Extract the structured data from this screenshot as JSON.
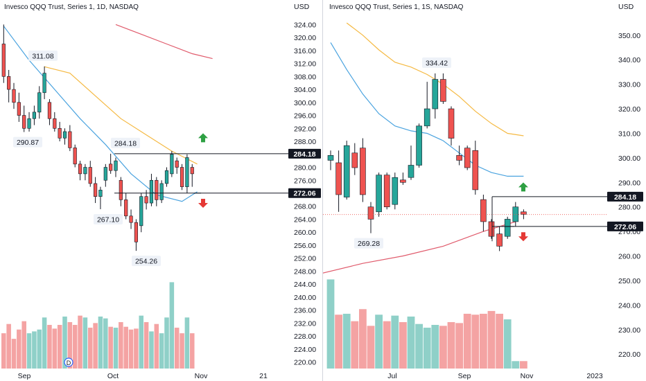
{
  "colors": {
    "up": "#26a69a",
    "down": "#ef5350",
    "up_volume": "#8fd0c8",
    "down_volume": "#f4a3a3",
    "ma_blue": "#4aa3df",
    "ma_orange": "#f5b942",
    "ma_red": "#e05a6b",
    "level_line": "#131722",
    "callout_bg": "#eef2f8",
    "tag_bg": "#131722",
    "arrow_up": "#2ea043",
    "arrow_down": "#e53935"
  },
  "chart_data": [
    {
      "type": "candlestick",
      "title": "Invesco QQQ Trust, Series 1, 1D, NASDAQ",
      "currency": "USD",
      "ylim": [
        218,
        326
      ],
      "y_ticks": [
        220,
        224,
        228,
        232,
        236,
        240,
        244,
        248,
        252,
        256,
        260,
        264,
        268,
        272,
        276,
        280,
        284,
        288,
        292,
        296,
        300,
        304,
        308,
        312,
        316,
        320,
        324
      ],
      "time_labels": [
        "Sep",
        "Oct",
        "Nov",
        "21"
      ],
      "candles": [
        {
          "o": 318,
          "h": 324,
          "l": 306,
          "c": 308
        },
        {
          "o": 308,
          "h": 310,
          "l": 300,
          "c": 304
        },
        {
          "o": 304,
          "h": 306,
          "l": 298,
          "c": 300
        },
        {
          "o": 300,
          "h": 303,
          "l": 294,
          "c": 296
        },
        {
          "o": 296,
          "h": 299,
          "l": 290.87,
          "c": 292
        },
        {
          "o": 292,
          "h": 297,
          "l": 291,
          "c": 295
        },
        {
          "o": 295,
          "h": 299,
          "l": 293,
          "c": 297
        },
        {
          "o": 297,
          "h": 305,
          "l": 295,
          "c": 303
        },
        {
          "o": 303,
          "h": 311.08,
          "l": 301,
          "c": 309
        },
        {
          "o": 300,
          "h": 301,
          "l": 293,
          "c": 295
        },
        {
          "o": 295,
          "h": 297,
          "l": 291,
          "c": 292
        },
        {
          "o": 292,
          "h": 294,
          "l": 288,
          "c": 289
        },
        {
          "o": 289,
          "h": 292,
          "l": 287,
          "c": 291
        },
        {
          "o": 291,
          "h": 293,
          "l": 285,
          "c": 286
        },
        {
          "o": 286,
          "h": 287,
          "l": 280,
          "c": 281
        },
        {
          "o": 281,
          "h": 282,
          "l": 276,
          "c": 278
        },
        {
          "o": 278,
          "h": 281,
          "l": 276,
          "c": 280
        },
        {
          "o": 280,
          "h": 282,
          "l": 274,
          "c": 275
        },
        {
          "o": 275,
          "h": 277,
          "l": 269,
          "c": 271
        },
        {
          "o": 271,
          "h": 274,
          "l": 267.1,
          "c": 273
        },
        {
          "o": 276,
          "h": 281,
          "l": 274,
          "c": 280
        },
        {
          "o": 281,
          "h": 284.18,
          "l": 278,
          "c": 279
        },
        {
          "o": 279,
          "h": 283,
          "l": 277,
          "c": 282
        },
        {
          "o": 276,
          "h": 277,
          "l": 268,
          "c": 270
        },
        {
          "o": 270,
          "h": 272,
          "l": 264,
          "c": 265
        },
        {
          "o": 265,
          "h": 267,
          "l": 261,
          "c": 263
        },
        {
          "o": 263,
          "h": 264,
          "l": 254.26,
          "c": 257
        },
        {
          "o": 262,
          "h": 272,
          "l": 260,
          "c": 271
        },
        {
          "o": 271,
          "h": 273,
          "l": 267,
          "c": 269
        },
        {
          "o": 269,
          "h": 278,
          "l": 268,
          "c": 276
        },
        {
          "o": 276,
          "h": 277,
          "l": 268,
          "c": 270
        },
        {
          "o": 270,
          "h": 276,
          "l": 269,
          "c": 275
        },
        {
          "o": 275,
          "h": 280,
          "l": 274,
          "c": 279
        },
        {
          "o": 278,
          "h": 285,
          "l": 277,
          "c": 284
        },
        {
          "o": 282,
          "h": 283,
          "l": 278,
          "c": 280
        },
        {
          "o": 280,
          "h": 281,
          "l": 273,
          "c": 274
        },
        {
          "o": 274,
          "h": 284,
          "l": 272,
          "c": 283
        },
        {
          "o": 280,
          "h": 281,
          "l": 274,
          "c": 278
        }
      ],
      "volume": [
        0.38,
        0.48,
        0.32,
        0.42,
        0.51,
        0.38,
        0.4,
        0.42,
        0.55,
        0.47,
        0.43,
        0.47,
        0.56,
        0.5,
        0.47,
        0.57,
        0.55,
        0.44,
        0.49,
        0.56,
        0.54,
        0.45,
        0.44,
        0.5,
        0.45,
        0.42,
        0.43,
        0.57,
        0.5,
        0.4,
        0.48,
        0.38,
        0.55,
        0.93,
        0.44,
        0.38,
        0.55,
        0.38
      ],
      "ma_blue": [
        [
          0,
          323.5
        ],
        [
          5,
          313
        ],
        [
          10,
          304
        ],
        [
          15,
          295
        ],
        [
          20,
          287
        ],
        [
          25,
          278
        ],
        [
          30,
          271.5
        ],
        [
          35,
          269.5
        ],
        [
          38,
          272.5
        ]
      ],
      "ma_orange": [
        [
          8,
          311
        ],
        [
          13,
          309
        ],
        [
          18,
          302
        ],
        [
          23,
          295
        ],
        [
          28,
          290
        ],
        [
          33,
          285
        ],
        [
          38,
          281
        ]
      ],
      "ma_red": [
        [
          22,
          324
        ],
        [
          27,
          321
        ],
        [
          32,
          318
        ],
        [
          37,
          315
        ],
        [
          41,
          313.5
        ]
      ],
      "callouts": [
        "311.08",
        "290.87",
        "284.18",
        "267.10",
        "254.26"
      ],
      "levels": [
        284.18,
        272.06
      ],
      "level_labels": [
        "284.18",
        "272.06"
      ],
      "marker_letter": "D"
    },
    {
      "type": "candlestick",
      "title": "Invesco QQQ Trust, Series 1, 1S, NASDAQ",
      "currency": "USD",
      "ylim": [
        213,
        357
      ],
      "y_ticks": [
        220,
        230,
        240,
        250,
        260,
        270,
        280,
        290,
        300,
        310,
        320,
        330,
        340,
        350
      ],
      "time_labels": [
        "Jul",
        "Sep",
        "Nov",
        "2023"
      ],
      "candles": [
        {
          "o": 299,
          "h": 303,
          "l": 295,
          "c": 301
        },
        {
          "o": 298,
          "h": 303,
          "l": 278,
          "c": 285
        },
        {
          "o": 284,
          "h": 307,
          "l": 283,
          "c": 305
        },
        {
          "o": 302,
          "h": 306,
          "l": 293,
          "c": 296
        },
        {
          "o": 304,
          "h": 308,
          "l": 282,
          "c": 285
        },
        {
          "o": 280,
          "h": 282,
          "l": 269.28,
          "c": 275
        },
        {
          "o": 278,
          "h": 294,
          "l": 276,
          "c": 293
        },
        {
          "o": 293,
          "h": 294,
          "l": 279,
          "c": 280
        },
        {
          "o": 281,
          "h": 294,
          "l": 279,
          "c": 292
        },
        {
          "o": 291,
          "h": 294,
          "l": 289,
          "c": 290
        },
        {
          "o": 292,
          "h": 305,
          "l": 291,
          "c": 297
        },
        {
          "o": 297,
          "h": 314,
          "l": 296,
          "c": 313
        },
        {
          "o": 313,
          "h": 331,
          "l": 312,
          "c": 320
        },
        {
          "o": 320,
          "h": 334.42,
          "l": 316,
          "c": 332
        },
        {
          "o": 332,
          "h": 334.42,
          "l": 322,
          "c": 323
        },
        {
          "o": 320,
          "h": 321,
          "l": 305,
          "c": 308
        },
        {
          "o": 301,
          "h": 305,
          "l": 297,
          "c": 299
        },
        {
          "o": 304,
          "h": 305,
          "l": 295,
          "c": 296
        },
        {
          "o": 303,
          "h": 307,
          "l": 285,
          "c": 287
        },
        {
          "o": 283,
          "h": 285,
          "l": 270,
          "c": 274
        },
        {
          "o": 274,
          "h": 275,
          "l": 267,
          "c": 268
        },
        {
          "o": 269,
          "h": 272,
          "l": 262,
          "c": 264
        },
        {
          "o": 268,
          "h": 276,
          "l": 267,
          "c": 275
        },
        {
          "o": 274,
          "h": 282,
          "l": 272,
          "c": 280
        },
        {
          "o": 278,
          "h": 279,
          "l": 275,
          "c": 277
        }
      ],
      "volume": [
        0.96,
        0.58,
        0.59,
        0.51,
        0.64,
        0.46,
        0.58,
        0.51,
        0.57,
        0.5,
        0.56,
        0.48,
        0.44,
        0.47,
        0.46,
        0.5,
        0.49,
        0.59,
        0.58,
        0.59,
        0.62,
        0.59,
        0.53,
        0.08,
        0.08
      ],
      "ma_blue": [
        [
          0,
          347
        ],
        [
          2,
          336
        ],
        [
          4,
          326
        ],
        [
          6,
          318
        ],
        [
          8,
          313
        ],
        [
          10,
          311
        ],
        [
          12,
          310
        ],
        [
          14,
          307
        ],
        [
          16,
          302
        ],
        [
          18,
          297
        ],
        [
          20,
          294
        ],
        [
          22,
          292.5
        ],
        [
          24,
          292.5
        ]
      ],
      "ma_orange": [
        [
          2,
          355
        ],
        [
          4,
          350
        ],
        [
          6,
          344
        ],
        [
          8,
          339
        ],
        [
          10,
          337
        ],
        [
          12,
          334
        ],
        [
          14,
          330
        ],
        [
          16,
          325
        ],
        [
          18,
          319
        ],
        [
          20,
          314
        ],
        [
          22,
          310
        ],
        [
          24,
          309
        ]
      ],
      "ma_red": [
        [
          -1,
          253
        ],
        [
          4,
          257
        ],
        [
          9,
          260
        ],
        [
          14,
          264
        ],
        [
          19,
          270
        ],
        [
          23,
          274
        ]
      ],
      "callouts": [
        "334.42",
        "269.28"
      ],
      "levels": [
        284.18,
        272.06
      ],
      "level_labels": [
        "284.18",
        "272.06"
      ],
      "current_price": 276.9
    }
  ]
}
